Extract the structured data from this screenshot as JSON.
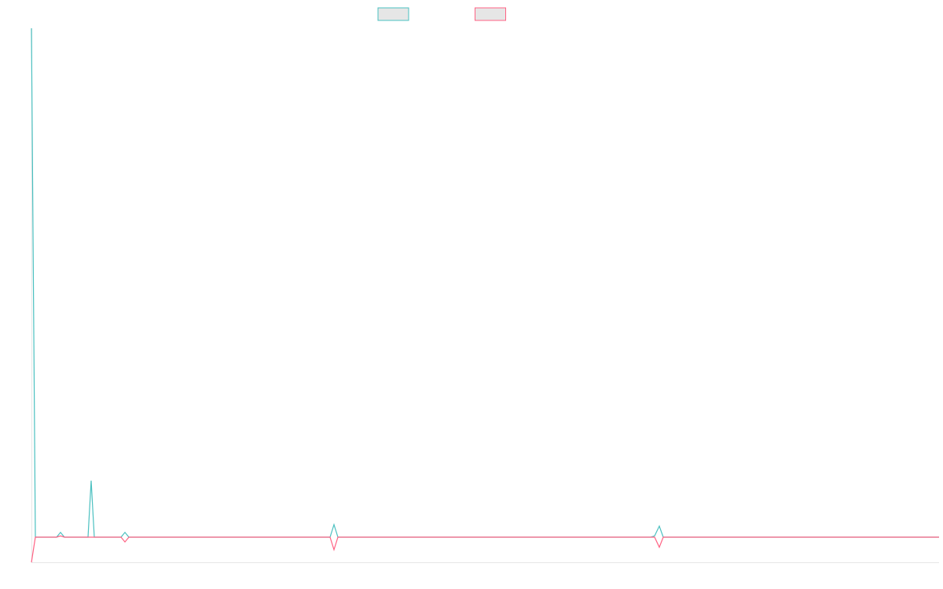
{
  "chart_data": {
    "type": "line",
    "x": [
      0,
      5,
      32,
      37,
      42,
      72,
      76,
      80,
      114,
      119,
      124,
      380,
      385,
      390,
      788,
      793,
      799,
      804,
      1155
    ],
    "series": [
      {
        "color": "#4bc0c0",
        "values": [
          20.25,
          0,
          0,
          0.19,
          0,
          0,
          2.25,
          0,
          0,
          0.19,
          0,
          0,
          0.5,
          0,
          0,
          0.05,
          0.44,
          0,
          0
        ]
      },
      {
        "color": "#ff6384",
        "values": [
          -1,
          0,
          0,
          0.05,
          0,
          0,
          0,
          0,
          0,
          -0.19,
          0,
          0,
          -0.5,
          0,
          0,
          0,
          -0.4,
          0,
          0
        ]
      }
    ],
    "xlim": [
      0,
      1155
    ],
    "ylim": [
      -1,
      20.25
    ]
  }
}
